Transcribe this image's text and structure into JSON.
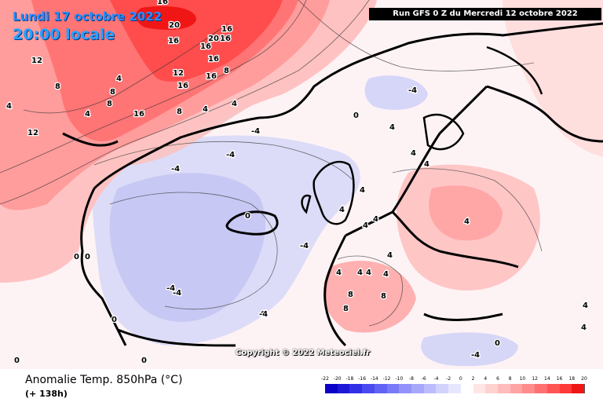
{
  "header": {
    "date": "Lundi 17 octobre 2022",
    "time": "20:00 locale",
    "run": "Run GFS 0 Z du Mercredi 12 octobre 2022"
  },
  "copyright": "Copyright © 2022 Meteociel.fr",
  "footer": {
    "title": "Anomalie Temp. 850hPa (°C)",
    "subtitle": "(+ 138h)"
  },
  "legend": {
    "ticks": [
      "-22",
      "-20",
      "-18",
      "-16",
      "-14",
      "-12",
      "-10",
      "-8",
      "-6",
      "-4",
      "-2",
      "0",
      "2",
      "4",
      "6",
      "8",
      "10",
      "12",
      "14",
      "16",
      "18",
      "20"
    ],
    "colors": [
      "#0a00c8",
      "#1d18d8",
      "#3230e6",
      "#4a4af0",
      "#6262f5",
      "#7a7af8",
      "#9292fa",
      "#a8a8fb",
      "#bcbcfc",
      "#d2d2fd",
      "#e6e6fe",
      "#ffffff",
      "#ffe6e6",
      "#ffd2d2",
      "#ffbcbc",
      "#ffa4a4",
      "#ff8c8c",
      "#ff7070",
      "#ff5454",
      "#ff3838",
      "#f01616"
    ]
  },
  "map": {
    "contour_labels": [
      "20",
      "16",
      "16",
      "16",
      "20",
      "16",
      "16",
      "16",
      "12",
      "16",
      "16",
      "8",
      "12",
      "8",
      "4",
      "8",
      "4",
      "8",
      "16",
      "12",
      "8",
      "4",
      "4",
      "4",
      "-4",
      "-4",
      "-4",
      "-4",
      "0",
      "0",
      "4",
      "4",
      "4",
      "0",
      "0",
      "-4",
      "-4",
      "-4",
      "0",
      "0",
      "0",
      "4",
      "4",
      "8",
      "4",
      "4",
      "8",
      "8",
      "4",
      "4",
      "4",
      "4",
      "4",
      "0",
      "-4",
      "4",
      "0",
      "-4",
      "4",
      "4"
    ]
  }
}
